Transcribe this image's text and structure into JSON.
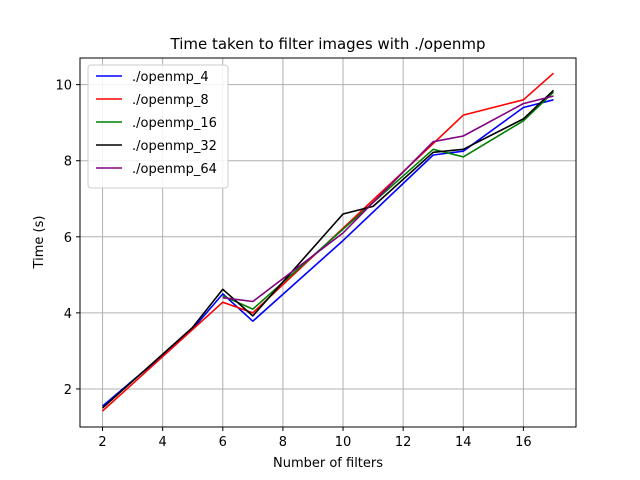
{
  "chart_data": {
    "type": "line",
    "title": "Time taken to filter images with ./openmp",
    "xlabel": "Number of filters",
    "ylabel": "Time (s)",
    "xlim": [
      1.25,
      17.75
    ],
    "ylim": [
      1.0,
      10.7
    ],
    "xticks": [
      2,
      4,
      6,
      8,
      10,
      12,
      14,
      16
    ],
    "yticks": [
      2,
      4,
      6,
      8,
      10
    ],
    "grid": true,
    "legend_position": "top-left",
    "x": [
      2,
      3,
      4,
      5,
      6,
      7,
      8,
      9,
      10,
      11,
      12,
      13,
      14,
      15,
      16,
      17
    ],
    "series": [
      {
        "name": "./openmp_4",
        "color": "#0000ff",
        "values": [
          1.55,
          2.22,
          2.88,
          3.58,
          4.5,
          3.78,
          null,
          null,
          5.9,
          null,
          null,
          8.15,
          8.25,
          null,
          9.4,
          9.6
        ]
      },
      {
        "name": "./openmp_8",
        "color": "#ff0000",
        "values": [
          1.42,
          null,
          null,
          null,
          4.28,
          4.0,
          null,
          null,
          null,
          null,
          null,
          8.45,
          9.2,
          null,
          9.6,
          10.3
        ]
      },
      {
        "name": "./openmp_16",
        "color": "#008000",
        "values": [
          null,
          null,
          null,
          null,
          4.45,
          4.1,
          null,
          null,
          null,
          null,
          null,
          8.3,
          8.1,
          null,
          9.05,
          9.8
        ]
      },
      {
        "name": "./openmp_32",
        "color": "#000000",
        "values": [
          1.5,
          null,
          null,
          3.62,
          4.62,
          3.92,
          null,
          null,
          6.6,
          6.8,
          null,
          8.22,
          8.3,
          null,
          9.1,
          9.85
        ]
      },
      {
        "name": "./openmp_64",
        "color": "#800080",
        "values": [
          null,
          null,
          null,
          null,
          4.4,
          4.3,
          null,
          null,
          6.1,
          null,
          null,
          8.5,
          8.65,
          null,
          9.5,
          9.7
        ]
      }
    ]
  }
}
